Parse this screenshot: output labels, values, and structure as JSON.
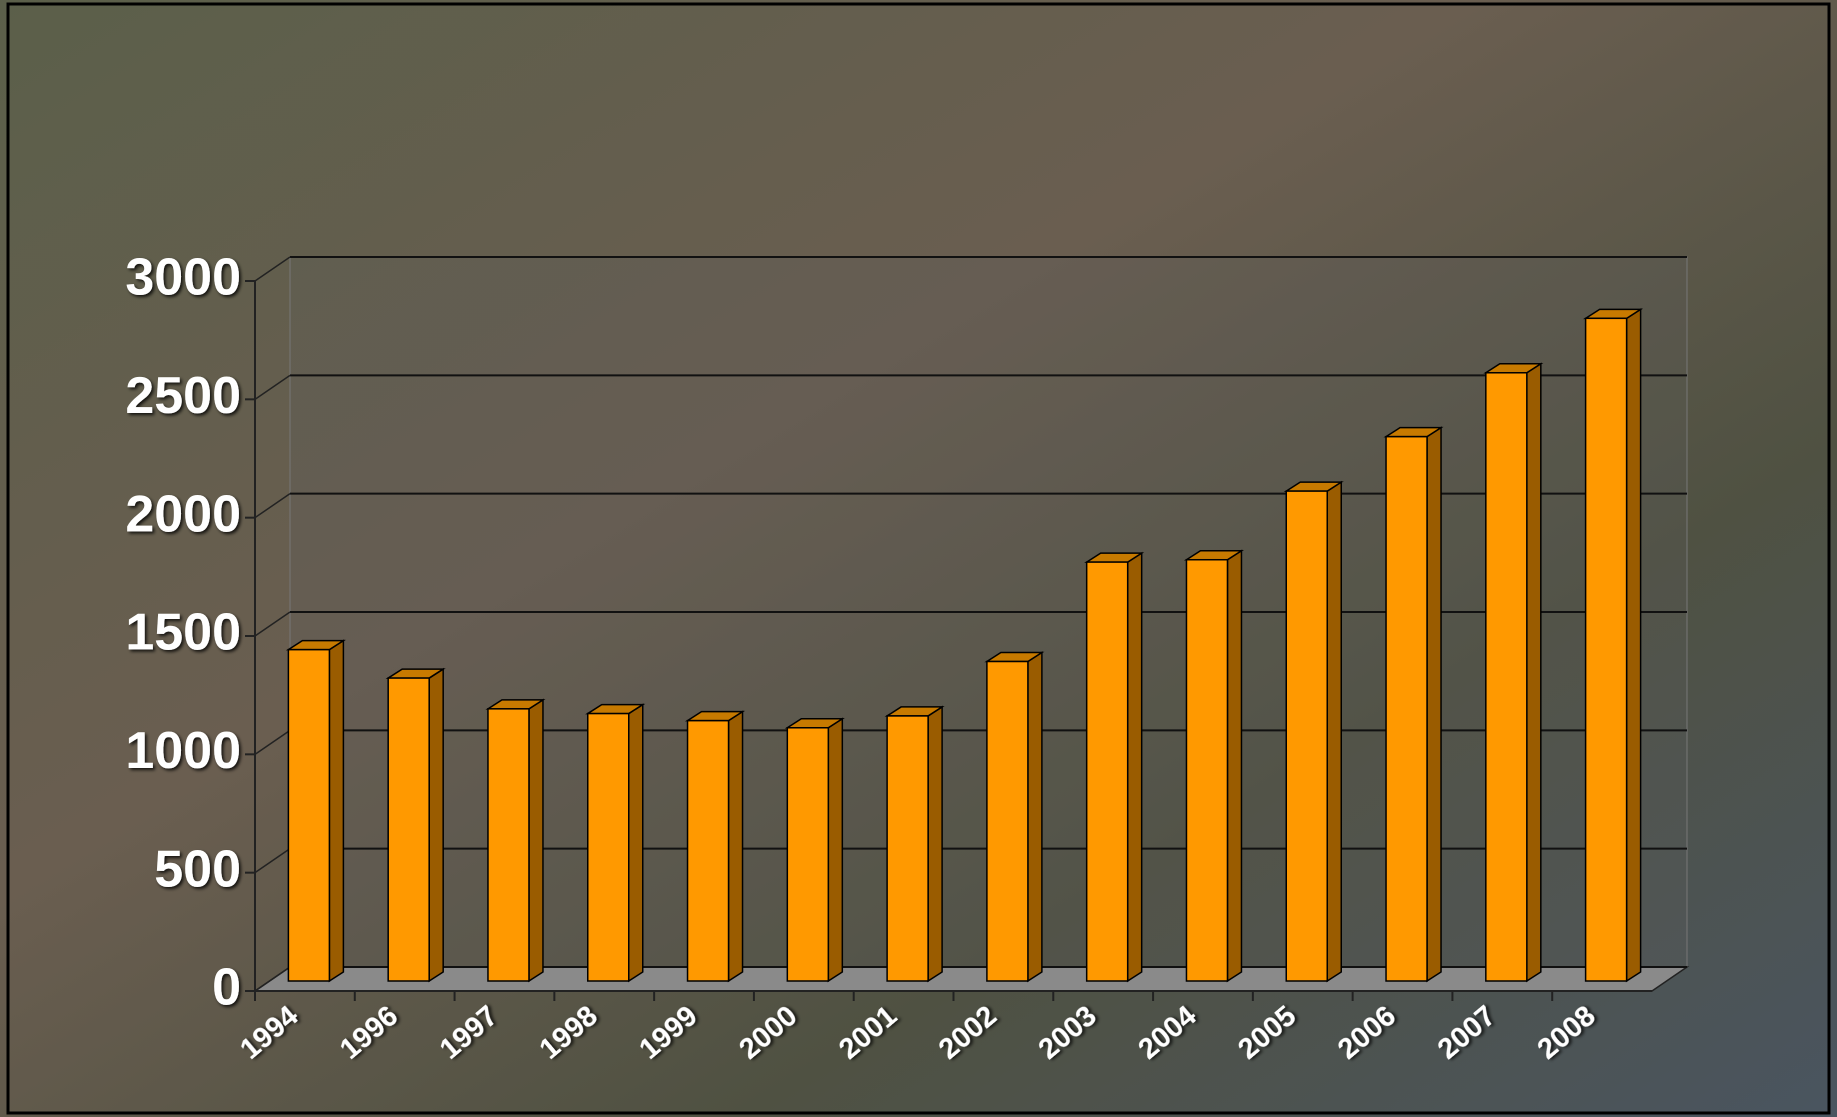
{
  "chart_data": {
    "type": "bar3d",
    "categories": [
      "1994",
      "1996",
      "1997",
      "1998",
      "1999",
      "2000",
      "2001",
      "2002",
      "2003",
      "2004",
      "2005",
      "2006",
      "2007",
      "2008"
    ],
    "values": [
      1400,
      1280,
      1150,
      1130,
      1100,
      1070,
      1120,
      1350,
      1770,
      1780,
      2070,
      2300,
      2570,
      2800
    ],
    "color": "#ff9900",
    "ylim": [
      0,
      3000
    ],
    "yticks": [
      0,
      500,
      1000,
      1500,
      2000,
      2500,
      3000
    ],
    "grid": true
  }
}
